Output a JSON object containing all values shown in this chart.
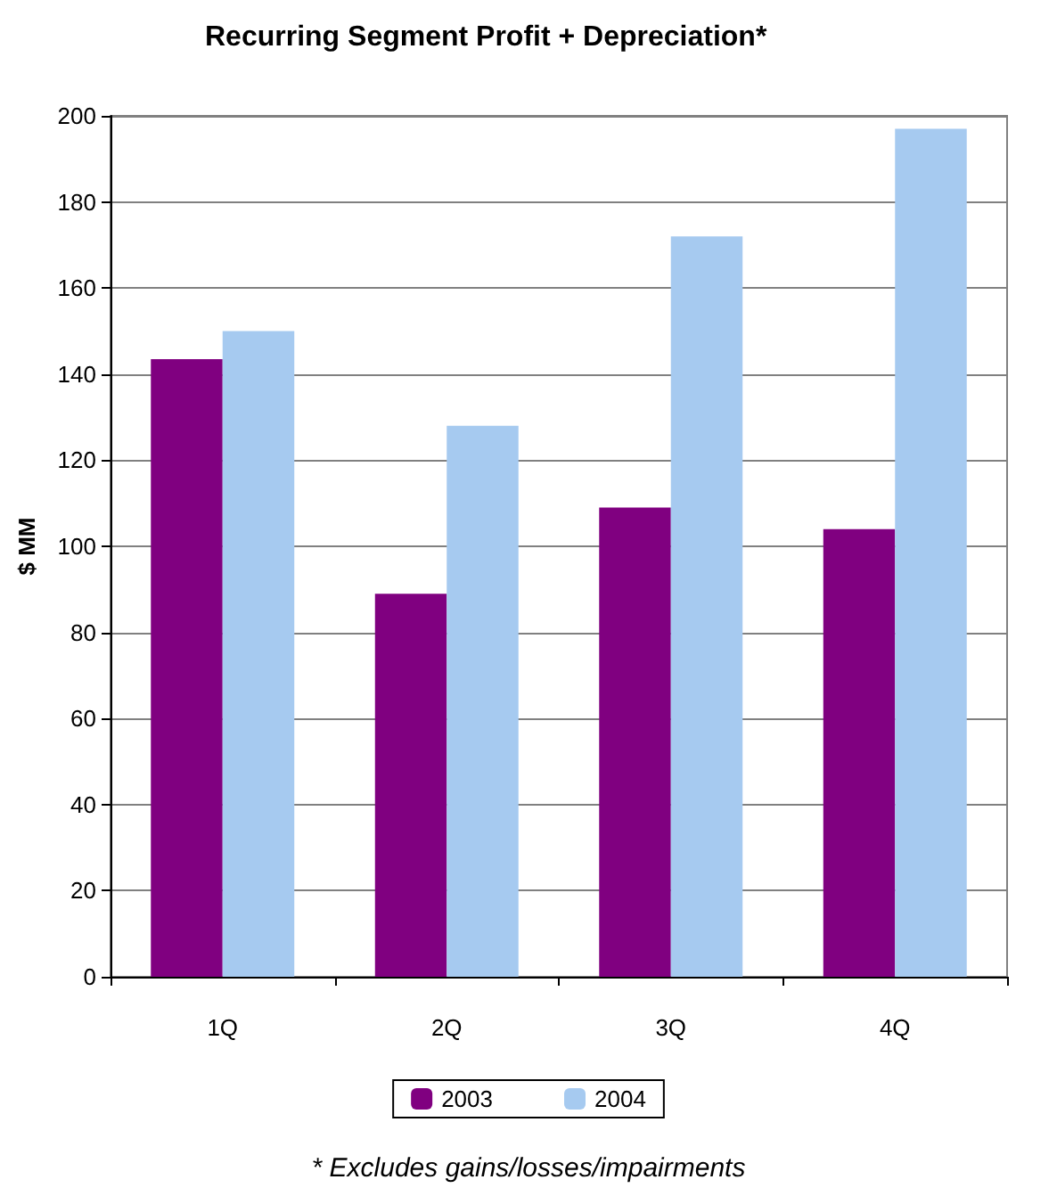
{
  "chart_data": {
    "type": "bar",
    "title": "Recurring Segment Profit + Depreciation*",
    "ylabel": "$ MM",
    "categories": [
      "1Q",
      "2Q",
      "3Q",
      "4Q"
    ],
    "series": [
      {
        "name": "2003",
        "color": "#800080",
        "values": [
          143.5,
          89,
          109,
          104
        ]
      },
      {
        "name": "2004",
        "color": "#a6caf0",
        "values": [
          150,
          128,
          172,
          197
        ]
      }
    ],
    "ylim": [
      0,
      200
    ],
    "yticks": [
      0,
      20,
      40,
      60,
      80,
      100,
      120,
      140,
      160,
      180,
      200
    ],
    "grid": "y",
    "legend": "bottom",
    "annotations": [
      "* Excludes gains/losses/impairments"
    ]
  }
}
